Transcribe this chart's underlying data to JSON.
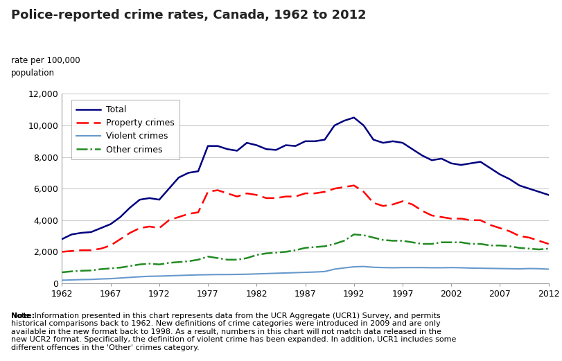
{
  "title": "Police-reported crime rates, Canada, 1962 to 2012",
  "ylabel_line1": "rate per 100,000",
  "ylabel_line2": "population",
  "years": [
    1962,
    1963,
    1964,
    1965,
    1966,
    1967,
    1968,
    1969,
    1970,
    1971,
    1972,
    1973,
    1974,
    1975,
    1976,
    1977,
    1978,
    1979,
    1980,
    1981,
    1982,
    1983,
    1984,
    1985,
    1986,
    1987,
    1988,
    1989,
    1990,
    1991,
    1992,
    1993,
    1994,
    1995,
    1996,
    1997,
    1998,
    1999,
    2000,
    2001,
    2002,
    2003,
    2004,
    2005,
    2006,
    2007,
    2008,
    2009,
    2010,
    2011,
    2012
  ],
  "total": [
    2800,
    3100,
    3200,
    3250,
    3500,
    3750,
    4200,
    4800,
    5300,
    5400,
    5300,
    6000,
    6700,
    7000,
    7100,
    8700,
    8700,
    8500,
    8400,
    8900,
    8750,
    8500,
    8450,
    8750,
    8700,
    9000,
    9000,
    9100,
    10000,
    10300,
    10500,
    10000,
    9100,
    8900,
    9000,
    8900,
    8500,
    8100,
    7800,
    7900,
    7600,
    7500,
    7600,
    7700,
    7300,
    6900,
    6600,
    6200,
    6000,
    5800,
    5600
  ],
  "property": [
    2000,
    2050,
    2100,
    2100,
    2200,
    2400,
    2800,
    3200,
    3500,
    3600,
    3500,
    4000,
    4200,
    4400,
    4500,
    5800,
    5900,
    5700,
    5500,
    5700,
    5600,
    5400,
    5400,
    5500,
    5500,
    5700,
    5700,
    5800,
    6000,
    6100,
    6200,
    5800,
    5100,
    4900,
    5000,
    5200,
    5000,
    4600,
    4300,
    4200,
    4100,
    4100,
    4000,
    4000,
    3700,
    3500,
    3300,
    3000,
    2900,
    2700,
    2500
  ],
  "violent": [
    200,
    220,
    240,
    250,
    280,
    300,
    340,
    380,
    420,
    450,
    460,
    480,
    500,
    520,
    540,
    550,
    560,
    560,
    570,
    580,
    600,
    620,
    640,
    660,
    680,
    700,
    720,
    750,
    900,
    980,
    1050,
    1070,
    1020,
    1000,
    990,
    1000,
    1000,
    1000,
    990,
    990,
    1000,
    990,
    970,
    960,
    950,
    940,
    930,
    920,
    940,
    930,
    900
  ],
  "other": [
    700,
    760,
    800,
    820,
    900,
    950,
    1000,
    1100,
    1200,
    1250,
    1200,
    1300,
    1350,
    1400,
    1500,
    1700,
    1600,
    1500,
    1500,
    1600,
    1800,
    1900,
    1950,
    2000,
    2100,
    2250,
    2300,
    2350,
    2500,
    2700,
    3100,
    3050,
    2900,
    2750,
    2700,
    2700,
    2600,
    2500,
    2500,
    2600,
    2600,
    2600,
    2500,
    2500,
    2400,
    2400,
    2350,
    2250,
    2200,
    2150,
    2200
  ],
  "total_color": "#000080",
  "property_color": "#FF0000",
  "violent_color": "#6699CC",
  "other_color": "#228B22",
  "bg_color": "#FFFFFF",
  "ylim": [
    0,
    12000
  ],
  "yticks": [
    0,
    2000,
    4000,
    6000,
    8000,
    10000,
    12000
  ],
  "xticks": [
    1962,
    1967,
    1972,
    1977,
    1982,
    1987,
    1992,
    1997,
    2002,
    2007,
    2012
  ],
  "note_bold": "Note:",
  "note_rest": " Information presented in this chart represents data from the UCR Aggregate (UCR1) Survey, and permits historical comparisons back to 1962. New definitions of crime categories were introduced in 2009 and are only available in the new format back to 1998. As a result, numbers in this chart will not match data released in the new UCR2 format. Specifically, the definition of violent crime has been expanded. In addition, UCR1 includes some different offences in the 'Other' crimes category."
}
